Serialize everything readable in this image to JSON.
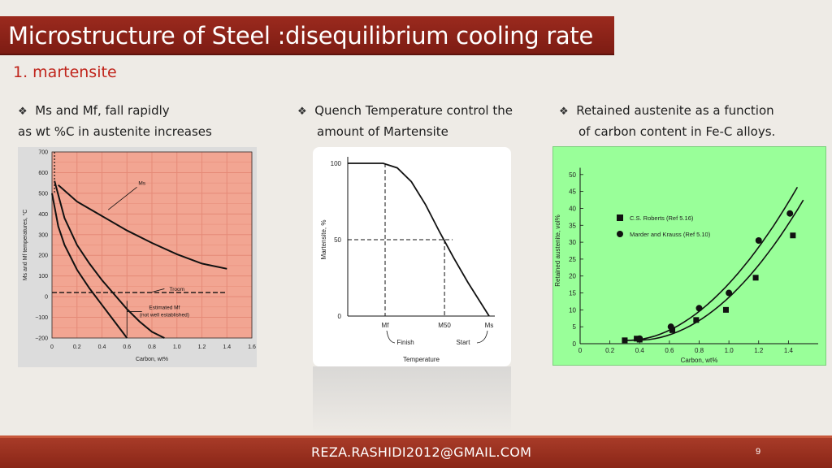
{
  "slide": {
    "title": "Microstructure of Steel :disequilibrium cooling rate",
    "subtitle": "1. martensite",
    "bullets": [
      {
        "line1": "Ms and Mf, fall rapidly",
        "line2": "as wt %C in austenite increases"
      },
      {
        "line1": "Quench Temperature control the",
        "line2": "amount of Martensite"
      },
      {
        "line1": "Retained austenite as a function",
        "line2": "of carbon content in Fe-C alloys."
      }
    ],
    "bullet_icon": "diamond-bullet-icon",
    "footer_email": "REZA.RASHIDI2012@GMAIL.COM",
    "page_number": "9",
    "colors": {
      "title_bar": "#8b2318",
      "subtitle": "#c0251c",
      "chart1_bg": "#f2a592",
      "chart3_bg": "#99ff99"
    }
  },
  "chart_data": [
    {
      "type": "line",
      "xlabel": "Carbon, wt%",
      "ylabel": "Ms and Mf temperatures, °C",
      "xlim": [
        0,
        1.6
      ],
      "ylim": [
        -200,
        700
      ],
      "xticks": [
        "0",
        "0.2",
        "0.4",
        "0.6",
        "0.8",
        "1.0",
        "1.2",
        "1.4",
        "1.6"
      ],
      "yticks": [
        "700",
        "600",
        "500",
        "400",
        "300",
        "200",
        "100",
        "0",
        "−100",
        "−200"
      ],
      "grid": true,
      "series": [
        {
          "name": "Ms",
          "x": [
            0.05,
            0.2,
            0.4,
            0.6,
            0.8,
            1.0,
            1.2,
            1.4
          ],
          "y": [
            540,
            460,
            390,
            320,
            260,
            205,
            160,
            135
          ]
        },
        {
          "name": "Mf",
          "x": [
            0.0,
            0.05,
            0.1,
            0.2,
            0.3,
            0.4,
            0.5,
            0.6
          ],
          "y": [
            500,
            340,
            250,
            130,
            40,
            -40,
            -120,
            -200
          ]
        },
        {
          "name": "",
          "x": [
            0.02,
            0.1,
            0.2,
            0.3,
            0.4,
            0.5,
            0.6,
            0.7,
            0.8,
            0.9
          ],
          "y": [
            560,
            380,
            250,
            160,
            80,
            10,
            -60,
            -120,
            -170,
            -200
          ]
        }
      ],
      "annotations": [
        {
          "text": "Ms",
          "x": 0.72,
          "y": 540
        },
        {
          "text": "Troom",
          "x": 1.0,
          "y": 28
        },
        {
          "text": "Estimated Mf",
          "x": 0.9,
          "y": -60
        },
        {
          "text": "(not well established)",
          "x": 0.9,
          "y": -95
        }
      ],
      "room_temperature": 20
    },
    {
      "type": "line",
      "xlabel": "Temperature",
      "ylabel": "Martensite, %",
      "yticks": [
        "100",
        "50",
        "0"
      ],
      "xticks": [
        "Mf",
        "M50",
        "Ms"
      ],
      "ylim": [
        0,
        100
      ],
      "series": [
        {
          "name": "",
          "x": [
            0,
            0.25,
            0.35,
            0.45,
            0.55,
            0.65,
            0.75,
            0.85,
            1.0
          ],
          "y": [
            100,
            100,
            97,
            88,
            73,
            55,
            38,
            22,
            0
          ]
        }
      ],
      "annotations": [
        {
          "text": "Finish"
        },
        {
          "text": "Start"
        }
      ]
    },
    {
      "type": "scatter",
      "xlabel": "Carbon, wt%",
      "ylabel": "Retained austenite, vol%",
      "xlim": [
        0,
        1.6
      ],
      "ylim": [
        0,
        55
      ],
      "xticks": [
        "0",
        "0.2",
        "0.4",
        "0.6",
        "0.8",
        "1.0",
        "1.2",
        "1.4"
      ],
      "yticks": [
        "0",
        "5",
        "10",
        "15",
        "20",
        "25",
        "30",
        "35",
        "40",
        "45",
        "50"
      ],
      "legend_position": "top-left",
      "series": [
        {
          "name": "C.S. Roberts (Ref 5.16)",
          "marker": "square",
          "x": [
            0.3,
            0.38,
            0.4,
            0.62,
            0.78,
            0.98,
            1.18,
            1.43
          ],
          "y": [
            1,
            1.5,
            1.2,
            4,
            7,
            10,
            19.5,
            32
          ]
        },
        {
          "name": "Marder and Krauss (Ref 5.10)",
          "marker": "circle",
          "x": [
            0.4,
            0.61,
            0.8,
            1.0,
            1.2,
            1.41
          ],
          "y": [
            1.5,
            5,
            10.5,
            15,
            30.5,
            38.5
          ]
        }
      ]
    }
  ]
}
